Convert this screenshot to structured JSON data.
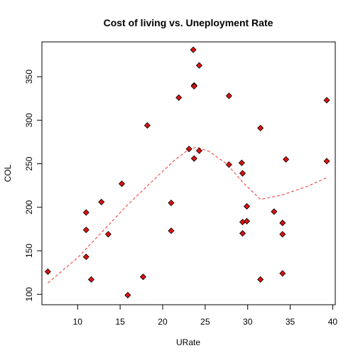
{
  "chart_data": {
    "type": "scatter",
    "title": "Cost of living vs. Uneployment Rate",
    "xlabel": "URate",
    "ylabel": "COL",
    "xlim": [
      5.8,
      40.3
    ],
    "ylim": [
      88,
      390
    ],
    "xticks": [
      10,
      15,
      20,
      25,
      30,
      35,
      40
    ],
    "yticks": [
      100,
      150,
      200,
      250,
      300,
      350
    ],
    "grid": false,
    "legend": "none",
    "colors": {
      "point_fill": "#dd1111",
      "point_edge": "#000000",
      "line": "#ee3333"
    },
    "points": [
      {
        "x": 6.5,
        "y": 126
      },
      {
        "x": 11.0,
        "y": 194
      },
      {
        "x": 11.0,
        "y": 174
      },
      {
        "x": 11.0,
        "y": 143
      },
      {
        "x": 11.6,
        "y": 117
      },
      {
        "x": 12.8,
        "y": 206
      },
      {
        "x": 13.6,
        "y": 169
      },
      {
        "x": 15.2,
        "y": 227
      },
      {
        "x": 15.9,
        "y": 99
      },
      {
        "x": 17.7,
        "y": 120
      },
      {
        "x": 18.2,
        "y": 294
      },
      {
        "x": 21.0,
        "y": 205
      },
      {
        "x": 21.0,
        "y": 173
      },
      {
        "x": 21.9,
        "y": 326
      },
      {
        "x": 23.1,
        "y": 267
      },
      {
        "x": 23.6,
        "y": 381
      },
      {
        "x": 23.7,
        "y": 340
      },
      {
        "x": 23.7,
        "y": 339
      },
      {
        "x": 23.7,
        "y": 256
      },
      {
        "x": 24.3,
        "y": 363
      },
      {
        "x": 24.3,
        "y": 265
      },
      {
        "x": 27.8,
        "y": 328
      },
      {
        "x": 27.8,
        "y": 249
      },
      {
        "x": 29.3,
        "y": 251
      },
      {
        "x": 29.4,
        "y": 239
      },
      {
        "x": 29.4,
        "y": 183
      },
      {
        "x": 29.4,
        "y": 170
      },
      {
        "x": 29.9,
        "y": 201
      },
      {
        "x": 29.9,
        "y": 184
      },
      {
        "x": 31.5,
        "y": 291
      },
      {
        "x": 31.5,
        "y": 117
      },
      {
        "x": 33.1,
        "y": 195
      },
      {
        "x": 34.1,
        "y": 182
      },
      {
        "x": 34.1,
        "y": 169
      },
      {
        "x": 34.1,
        "y": 124
      },
      {
        "x": 34.5,
        "y": 255
      },
      {
        "x": 39.3,
        "y": 323
      },
      {
        "x": 39.3,
        "y": 253
      }
    ],
    "trend_line": [
      {
        "x": 6.5,
        "y": 113
      },
      {
        "x": 10.0,
        "y": 142
      },
      {
        "x": 13.0,
        "y": 173
      },
      {
        "x": 16.0,
        "y": 204
      },
      {
        "x": 19.0,
        "y": 232
      },
      {
        "x": 21.5,
        "y": 255
      },
      {
        "x": 23.0,
        "y": 266
      },
      {
        "x": 24.0,
        "y": 269
      },
      {
        "x": 25.5,
        "y": 264
      },
      {
        "x": 27.5,
        "y": 250
      },
      {
        "x": 29.5,
        "y": 228
      },
      {
        "x": 31.5,
        "y": 209
      },
      {
        "x": 34.0,
        "y": 214
      },
      {
        "x": 37.0,
        "y": 224
      },
      {
        "x": 39.3,
        "y": 234
      }
    ]
  }
}
